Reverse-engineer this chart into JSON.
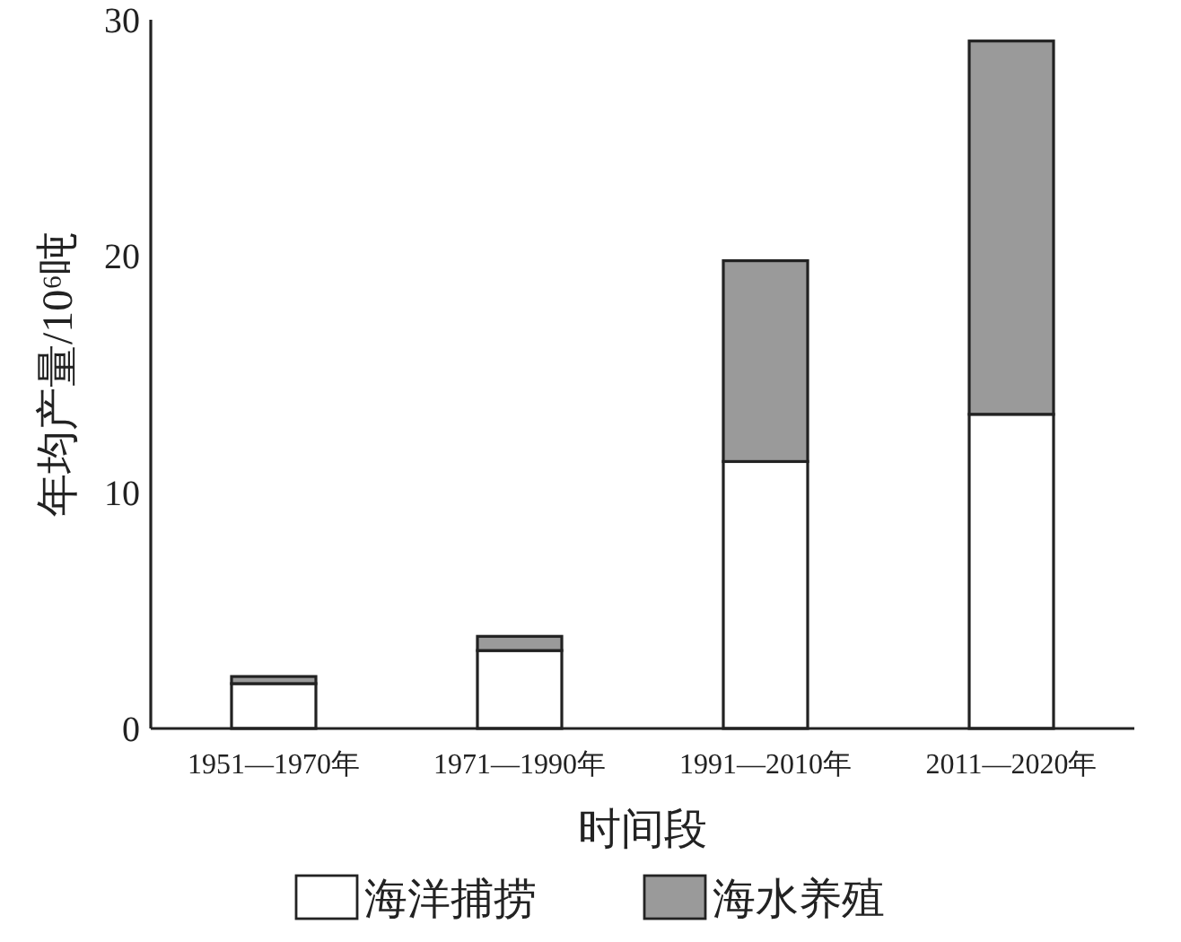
{
  "chart_data": {
    "type": "bar",
    "stacked": true,
    "xlabel": "时间段",
    "ylabel": "年均产量/10⁶吨",
    "categories": [
      "1951—1970年",
      "1971—1990年",
      "1991—2010年",
      "2011—2020年"
    ],
    "series": [
      {
        "name": "海洋捕捞",
        "color": "#ffffff",
        "values": [
          1.9,
          3.3,
          11.3,
          13.3
        ]
      },
      {
        "name": "海水养殖",
        "color": "#9a9a9a",
        "values": [
          0.3,
          0.6,
          8.5,
          15.8
        ]
      }
    ],
    "ylim": [
      0,
      30
    ],
    "yticks": [
      0,
      10,
      20,
      30
    ],
    "grid": false,
    "legend": "bottom"
  }
}
